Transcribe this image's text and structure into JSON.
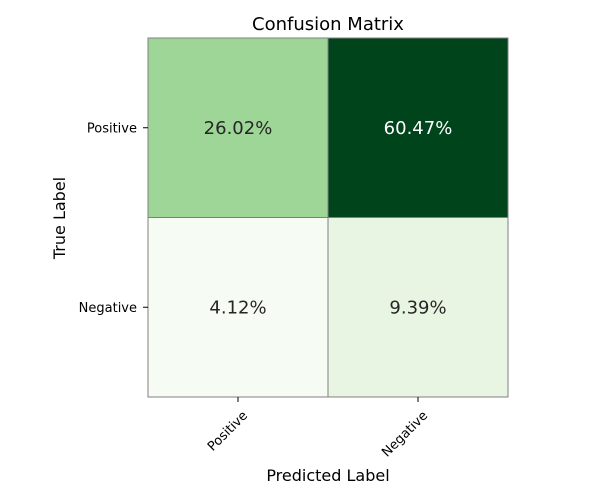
{
  "chart_data": {
    "type": "heatmap",
    "title": "Confusion Matrix",
    "xlabel": "Predicted Label",
    "ylabel": "True Label",
    "x_categories": [
      "Positive",
      "Negative"
    ],
    "y_categories": [
      "Positive",
      "Negative"
    ],
    "values": [
      [
        26.02,
        60.47
      ],
      [
        4.12,
        9.39
      ]
    ],
    "cell_labels": [
      [
        "26.02%",
        "60.47%"
      ],
      [
        "4.12%",
        "9.39%"
      ]
    ],
    "colorscale": "Greens",
    "cell_colors": [
      [
        "#9dd696",
        "#00441b"
      ],
      [
        "#f6fcf4",
        "#e7f5e2"
      ]
    ],
    "cell_text_colors": [
      [
        "#262626",
        "#ffffff"
      ],
      [
        "#262626",
        "#262626"
      ]
    ],
    "grid_line_color": "#808080"
  }
}
